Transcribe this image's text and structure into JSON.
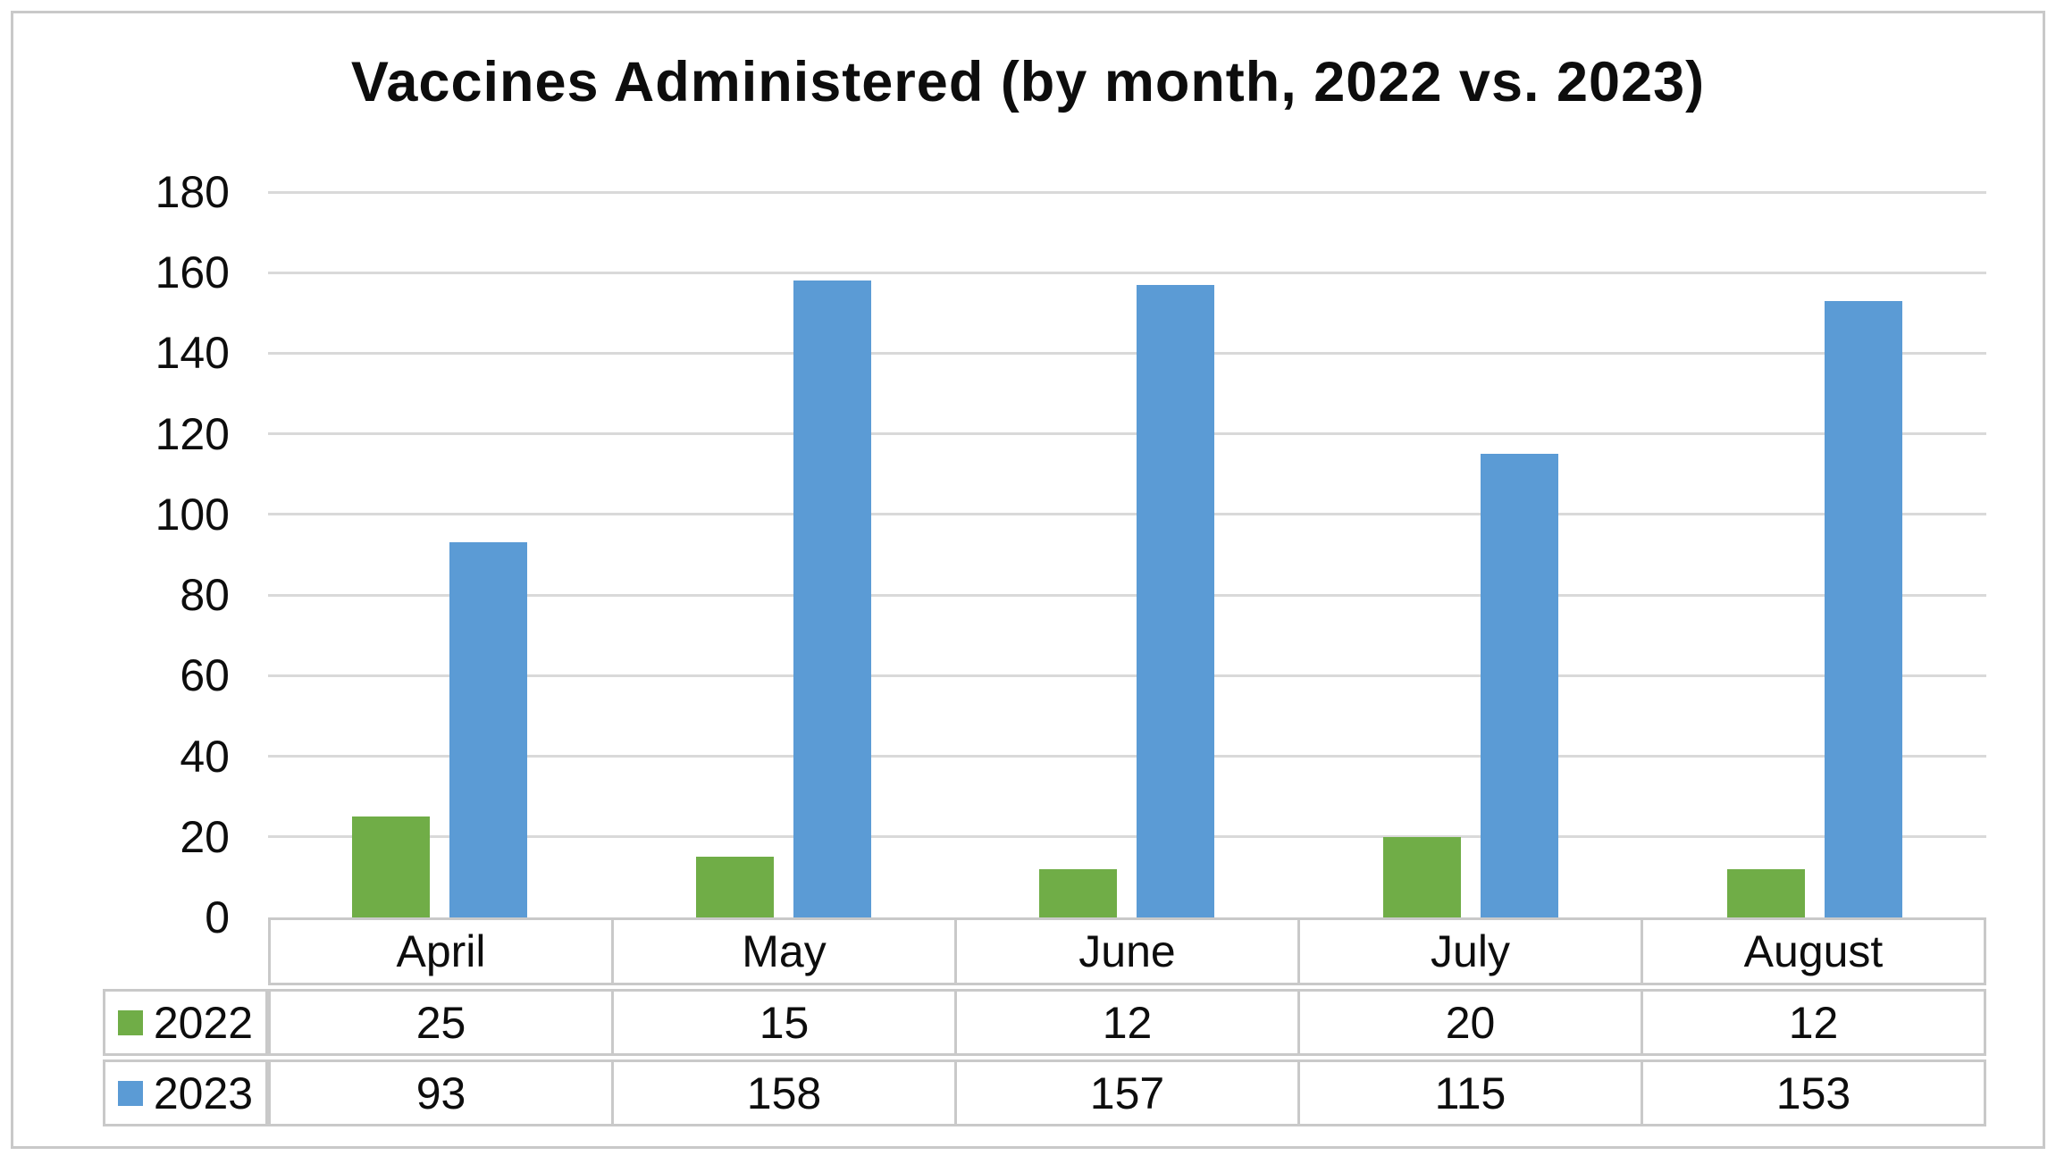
{
  "chart_data": {
    "type": "bar",
    "title": "Vaccines Administered (by month, 2022 vs. 2023)",
    "categories": [
      "April",
      "May",
      "June",
      "July",
      "August"
    ],
    "series": [
      {
        "name": "2022",
        "color": "#70AD47",
        "values": [
          25,
          15,
          12,
          20,
          12
        ]
      },
      {
        "name": "2023",
        "color": "#5B9BD5",
        "values": [
          93,
          158,
          157,
          115,
          153
        ]
      }
    ],
    "xlabel": "",
    "ylabel": "",
    "ylim": [
      0,
      180
    ],
    "yticks": [
      180,
      160,
      140,
      120,
      100,
      80,
      60,
      40,
      20,
      0
    ],
    "grid": true,
    "legend_position": "data-table-left-keys",
    "show_data_table": true
  },
  "colors": {
    "series_2022": "#70AD47",
    "series_2023": "#5B9BD5",
    "gridline": "#D9D9D9",
    "table_border": "#C9C9C9",
    "frame_border": "#C9C9C9",
    "text": "#0D0D0D",
    "background": "#FFFFFF"
  }
}
